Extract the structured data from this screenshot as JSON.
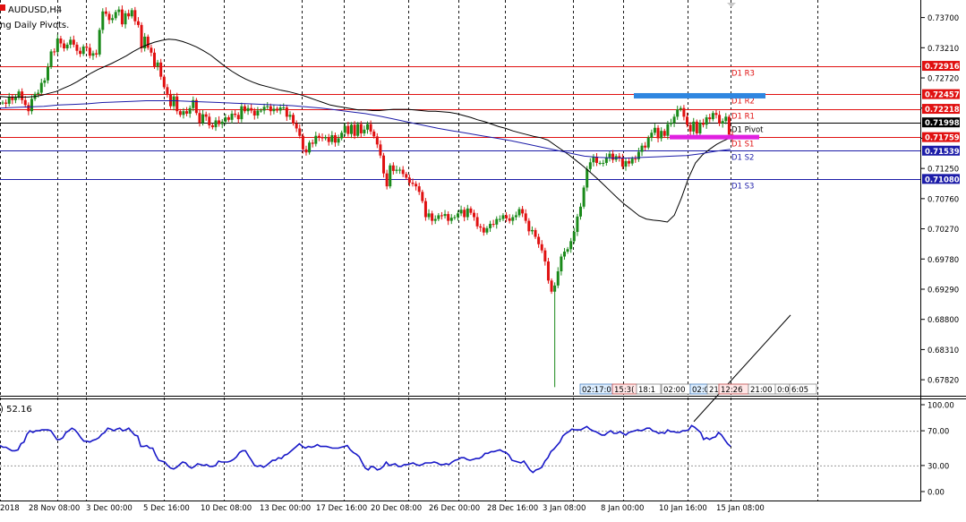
{
  "header": {
    "symbol_label": "AUDUSD,H4",
    "indicator_label": "ng Daily Pivots."
  },
  "sub_header": {
    "indicator_value": ") 52.16"
  },
  "colors": {
    "bull": "#1a8a1a",
    "bear": "#e01010",
    "ma_fast": "#000000",
    "ma_slow": "#1c1ca8",
    "resistance": "#e01010",
    "support": "#1c1ca8",
    "pivot": "#000000",
    "highlight_blue": "#2f86e0",
    "highlight_magenta": "#e020e0",
    "osc": "#1818c8",
    "grid": "#000000"
  },
  "chart_data": [
    {
      "type": "candlestick",
      "title": "AUDUSD,H4",
      "ylim": [
        0.6756,
        0.73985
      ],
      "y_ticks": [
        "0.73700",
        "0.73210",
        "0.72720",
        "0.72230",
        "0.71740",
        "0.71250",
        "0.70760",
        "0.70270",
        "0.69780",
        "0.69290",
        "0.68800",
        "0.68310",
        "0.67820"
      ],
      "x_ticks": [
        "2018",
        "28 Nov 08:00",
        "3 Dec 00:00",
        "5 Dec 16:00",
        "10 Dec 08:00",
        "13 Dec 00:00",
        "17 Dec 16:00",
        "20 Dec 08:00",
        "26 Dec 00:00",
        "28 Dec 16:00",
        "3 Jan 08:00",
        "8 Jan 00:00",
        "10 Jan 16:00",
        "15 Jan 08:00"
      ],
      "pivot_levels": [
        {
          "name": "D1 R3",
          "value": 0.72916,
          "price_label": "0.72916",
          "kind": "resistance"
        },
        {
          "name": "D1 R2",
          "value": 0.72457,
          "price_label": "0.72457",
          "kind": "resistance"
        },
        {
          "name": "D1 R1",
          "value": 0.72218,
          "price_label": "0.72218",
          "kind": "resistance"
        },
        {
          "name": "D1 Pivot",
          "value": 0.71998,
          "price_label": "0.71998",
          "kind": "pivot"
        },
        {
          "name": "D1 S1",
          "value": 0.71759,
          "price_label": "0.71759",
          "kind": "resistance"
        },
        {
          "name": "D1 S2",
          "value": 0.71539,
          "price_label": "0.71539",
          "kind": "support"
        },
        {
          "name": "D1 S3",
          "value": 0.7108,
          "price_label": "0.71080",
          "kind": "support"
        }
      ],
      "series_close": [
        0.7232,
        0.723,
        0.7241,
        0.7236,
        0.724,
        0.725,
        0.7236,
        0.7228,
        0.7218,
        0.7238,
        0.7246,
        0.7248,
        0.7264,
        0.7268,
        0.729,
        0.7315,
        0.7314,
        0.7336,
        0.7328,
        0.732,
        0.7326,
        0.7334,
        0.7326,
        0.7316,
        0.7311,
        0.7323,
        0.7321,
        0.7308,
        0.7312,
        0.731,
        0.735,
        0.738,
        0.7376,
        0.7366,
        0.7369,
        0.7379,
        0.7383,
        0.7359,
        0.7377,
        0.7372,
        0.7382,
        0.7364,
        0.7358,
        0.732,
        0.7339,
        0.7321,
        0.7313,
        0.7291,
        0.7297,
        0.7274,
        0.7257,
        0.7246,
        0.7226,
        0.7242,
        0.7218,
        0.7212,
        0.7218,
        0.7214,
        0.7223,
        0.7236,
        0.7215,
        0.7199,
        0.7213,
        0.7209,
        0.7195,
        0.7192,
        0.7203,
        0.7197,
        0.7201,
        0.7208,
        0.7204,
        0.7214,
        0.7212,
        0.7205,
        0.7226,
        0.7218,
        0.7223,
        0.7219,
        0.7211,
        0.7219,
        0.7219,
        0.7225,
        0.7226,
        0.7218,
        0.7222,
        0.7219,
        0.7224,
        0.7224,
        0.7209,
        0.7212,
        0.7198,
        0.719,
        0.7178,
        0.7156,
        0.7151,
        0.7167,
        0.7165,
        0.7178,
        0.7176,
        0.7174,
        0.7176,
        0.7168,
        0.7179,
        0.7167,
        0.7174,
        0.7183,
        0.7194,
        0.7181,
        0.7196,
        0.7178,
        0.7197,
        0.7182,
        0.7188,
        0.7197,
        0.7185,
        0.7177,
        0.7164,
        0.7146,
        0.7117,
        0.7096,
        0.713,
        0.7121,
        0.7123,
        0.7123,
        0.7116,
        0.711,
        0.7102,
        0.71,
        0.7096,
        0.7087,
        0.7072,
        0.7046,
        0.7052,
        0.704,
        0.7043,
        0.7049,
        0.7048,
        0.7051,
        0.704,
        0.7045,
        0.7046,
        0.7052,
        0.7058,
        0.7046,
        0.706,
        0.7053,
        0.7046,
        0.7031,
        0.7029,
        0.7021,
        0.7028,
        0.7035,
        0.7034,
        0.7043,
        0.7043,
        0.7049,
        0.7044,
        0.704,
        0.7046,
        0.7049,
        0.7059,
        0.7052,
        0.704,
        0.7023,
        0.7025,
        0.7014,
        0.7002,
        0.6992,
        0.6974,
        0.6943,
        0.6925,
        0.6935,
        0.6958,
        0.6982,
        0.699,
        0.6994,
        0.7007,
        0.7022,
        0.7047,
        0.7063,
        0.7094,
        0.7124,
        0.7135,
        0.7144,
        0.7134,
        0.7134,
        0.7134,
        0.7143,
        0.7149,
        0.7139,
        0.7145,
        0.7142,
        0.7128,
        0.7137,
        0.7133,
        0.7141,
        0.714,
        0.7152,
        0.7162,
        0.7159,
        0.7175,
        0.7183,
        0.7191,
        0.7174,
        0.7186,
        0.7178,
        0.7197,
        0.7199,
        0.7209,
        0.7221,
        0.7223,
        0.7209,
        0.7196,
        0.7185,
        0.7201,
        0.7182,
        0.7199,
        0.7196,
        0.7208,
        0.7205,
        0.7215,
        0.7212,
        0.7198,
        0.7202,
        0.7209,
        0.718,
        0.7175
      ],
      "ma_fast": [
        0.7242,
        0.7241,
        0.7241,
        0.7241,
        0.7241,
        0.7242,
        0.7244,
        0.7247,
        0.725,
        0.7255,
        0.726,
        0.7266,
        0.7273,
        0.728,
        0.7286,
        0.7291,
        0.7296,
        0.7302,
        0.7308,
        0.7315,
        0.7321,
        0.7326,
        0.733,
        0.7333,
        0.7335,
        0.7334,
        0.7331,
        0.7327,
        0.7322,
        0.7316,
        0.7309,
        0.73,
        0.7291,
        0.7283,
        0.7276,
        0.727,
        0.7265,
        0.7261,
        0.7258,
        0.7255,
        0.7252,
        0.725,
        0.7247,
        0.7244,
        0.724,
        0.7236,
        0.7232,
        0.7228,
        0.7226,
        0.7224,
        0.7222,
        0.722,
        0.722,
        0.7219,
        0.7219,
        0.722,
        0.7221,
        0.7221,
        0.7221,
        0.722,
        0.7219,
        0.7218,
        0.7218,
        0.7217,
        0.7216,
        0.7214,
        0.7211,
        0.7208,
        0.7204,
        0.7201,
        0.7197,
        0.7193,
        0.719,
        0.7186,
        0.7183,
        0.718,
        0.7177,
        0.7175,
        0.7171,
        0.7163,
        0.7155,
        0.7147,
        0.7138,
        0.7129,
        0.7119,
        0.7109,
        0.7098,
        0.7087,
        0.7076,
        0.7066,
        0.7057,
        0.7048,
        0.7043,
        0.7041,
        0.704,
        0.7038,
        0.7049,
        0.7077,
        0.7109,
        0.7134,
        0.7147,
        0.7156,
        0.7164,
        0.717,
        0.7175
      ],
      "ma_slow": [
        0.7223,
        0.7224,
        0.7225,
        0.7226,
        0.7228,
        0.7229,
        0.723,
        0.7232,
        0.7233,
        0.7234,
        0.7235,
        0.7235,
        0.7235,
        0.7234,
        0.7233,
        0.7232,
        0.7231,
        0.723,
        0.7229,
        0.7228,
        0.7227,
        0.7225,
        0.7223,
        0.722,
        0.7217,
        0.7214,
        0.721,
        0.7205,
        0.72,
        0.7195,
        0.719,
        0.7186,
        0.7182,
        0.7178,
        0.7174,
        0.717,
        0.7165,
        0.716,
        0.7155,
        0.715,
        0.7145,
        0.7143,
        0.7142,
        0.7142,
        0.7143,
        0.7144,
        0.7145,
        0.7146,
        0.7149,
        0.7153,
        0.7156
      ],
      "trendline": [
        {
          "x": 0.775,
          "y": 0.6714
        },
        {
          "x": 0.972,
          "y": 0.6887
        }
      ]
    },
    {
      "type": "line",
      "title": ") 52.16",
      "ylim": [
        0,
        100
      ],
      "y_ticks": [
        "100.00",
        "70.00",
        "30.00",
        "0.00"
      ],
      "series_values": [
        53,
        51,
        51,
        49,
        47,
        47,
        48,
        55,
        57,
        66,
        70,
        68,
        70,
        70,
        71,
        71,
        71,
        70,
        65,
        60,
        60,
        62,
        68,
        70,
        73,
        71,
        67,
        62,
        58,
        58,
        57,
        59,
        60,
        62,
        66,
        68,
        73,
        72,
        70,
        72,
        73,
        70,
        71,
        73,
        69,
        65,
        64,
        52,
        52,
        53,
        50,
        50,
        42,
        36,
        35,
        34,
        30,
        27,
        26,
        28,
        31,
        34,
        33,
        29,
        27,
        29,
        32,
        31,
        30,
        31,
        29,
        29,
        30,
        35,
        34,
        34,
        34,
        35,
        37,
        40,
        45,
        47,
        47,
        41,
        36,
        30,
        29,
        30,
        28,
        30,
        33,
        36,
        36,
        39,
        38,
        42,
        43,
        46,
        49,
        52,
        55,
        52,
        50,
        52,
        51,
        52,
        54,
        52,
        52,
        52,
        51,
        50,
        50,
        50,
        51,
        52,
        53,
        48,
        45,
        43,
        40,
        33,
        27,
        25,
        29,
        28,
        25,
        26,
        29,
        34,
        30,
        31,
        32,
        29,
        29,
        31,
        31,
        32,
        33,
        31,
        30,
        31,
        33,
        33,
        33,
        34,
        33,
        31,
        31,
        32,
        31,
        34,
        36,
        37,
        39,
        39,
        37,
        36,
        37,
        38,
        38,
        40,
        44,
        44,
        46,
        46,
        47,
        48,
        46,
        45,
        42,
        36,
        35,
        34,
        33,
        35,
        30,
        25,
        22,
        25,
        26,
        28,
        35,
        39,
        46,
        49,
        53,
        57,
        64,
        67,
        69,
        72,
        71,
        71,
        71,
        73,
        75,
        72,
        70,
        69,
        67,
        65,
        65,
        68,
        70,
        67,
        67,
        69,
        67,
        65,
        68,
        69,
        70,
        71,
        70,
        71,
        73,
        73,
        70,
        69,
        67,
        68,
        67,
        71,
        69,
        69,
        68,
        68,
        70,
        70,
        71,
        76,
        74,
        71,
        68,
        60,
        62,
        60,
        62,
        63,
        68,
        65,
        60,
        55,
        52
      ]
    }
  ],
  "time_labels": [
    "02:17:0",
    "15:3(",
    "18:1",
    "02:00",
    "02:0",
    "21",
    "12:26",
    "21:00",
    "0:00",
    "6:05"
  ]
}
